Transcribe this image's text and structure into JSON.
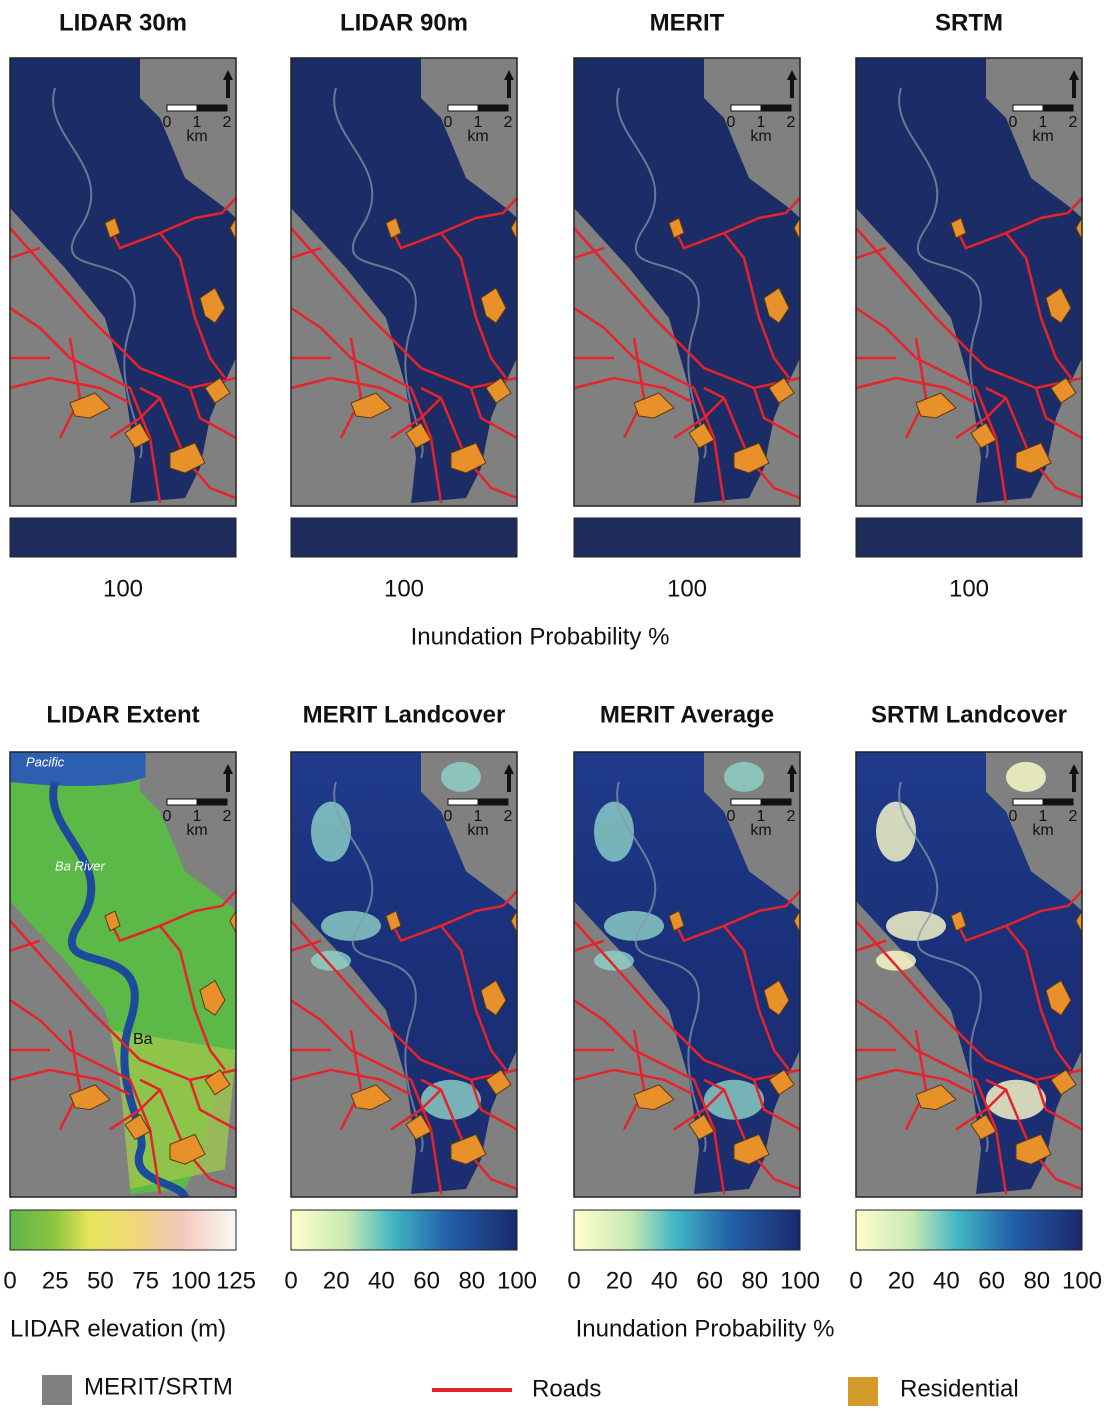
{
  "top_panels": [
    {
      "title": "LIDAR 30m",
      "scale_label": 100
    },
    {
      "title": "LIDAR 90m",
      "scale_label": 100
    },
    {
      "title": "MERIT",
      "scale_label": 100
    },
    {
      "title": "SRTM",
      "scale_label": 100
    }
  ],
  "top_axis_label": "Inundation Probability %",
  "bottom_panels": [
    {
      "title": "LIDAR Extent"
    },
    {
      "title": "MERIT Landcover"
    },
    {
      "title": "MERIT Average"
    },
    {
      "title": "SRTM Landcover"
    }
  ],
  "scale_bar": {
    "ticks": [
      0,
      1,
      2
    ],
    "unit": "km"
  },
  "map_labels": [
    "Pacific",
    "Ba River",
    "Ba"
  ],
  "elevation_ticks": [
    0,
    25,
    50,
    75,
    100,
    125
  ],
  "elevation_label": "LIDAR elevation (m)",
  "probability_ticks": [
    0,
    20,
    40,
    60,
    80,
    100
  ],
  "probability_label": "Inundation Probability %",
  "legend": [
    {
      "label": "MERIT/SRTM"
    },
    {
      "label": "Roads"
    },
    {
      "label": "Residential"
    }
  ]
}
